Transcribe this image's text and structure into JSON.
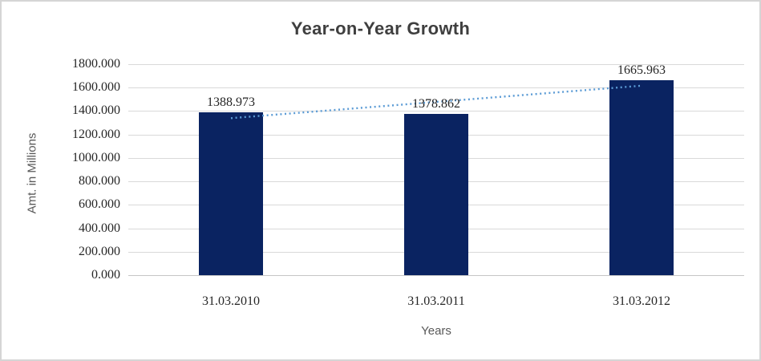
{
  "chart_data": {
    "type": "bar",
    "title": "Year-on-Year Growth",
    "xlabel": "Years",
    "ylabel": "Amt. in Millions",
    "categories": [
      "31.03.2010",
      "31.03.2011",
      "31.03.2012"
    ],
    "values": [
      1388.973,
      1378.862,
      1665.963
    ],
    "data_labels": [
      "1388.973",
      "1378.862",
      "1665.963"
    ],
    "yticks": [
      "1800.000",
      "1600.000",
      "1400.000",
      "1200.000",
      "1000.000",
      "800.000",
      "600.000",
      "400.000",
      "200.000",
      "0.000"
    ],
    "ylim": [
      0,
      1800
    ],
    "grid": true,
    "legend": false,
    "trendline": {
      "type": "linear",
      "style": "dotted"
    },
    "colors": {
      "bar": "#0a2361",
      "trendline": "#5b9bd5",
      "gridline": "#d9d9d9",
      "axis_line": "#c6c6c6",
      "title_text": "#3f3f3f",
      "tick_text": "#262626",
      "axis_title_text": "#595959",
      "background": "#ffffff",
      "border": "#d5d5d5"
    }
  }
}
